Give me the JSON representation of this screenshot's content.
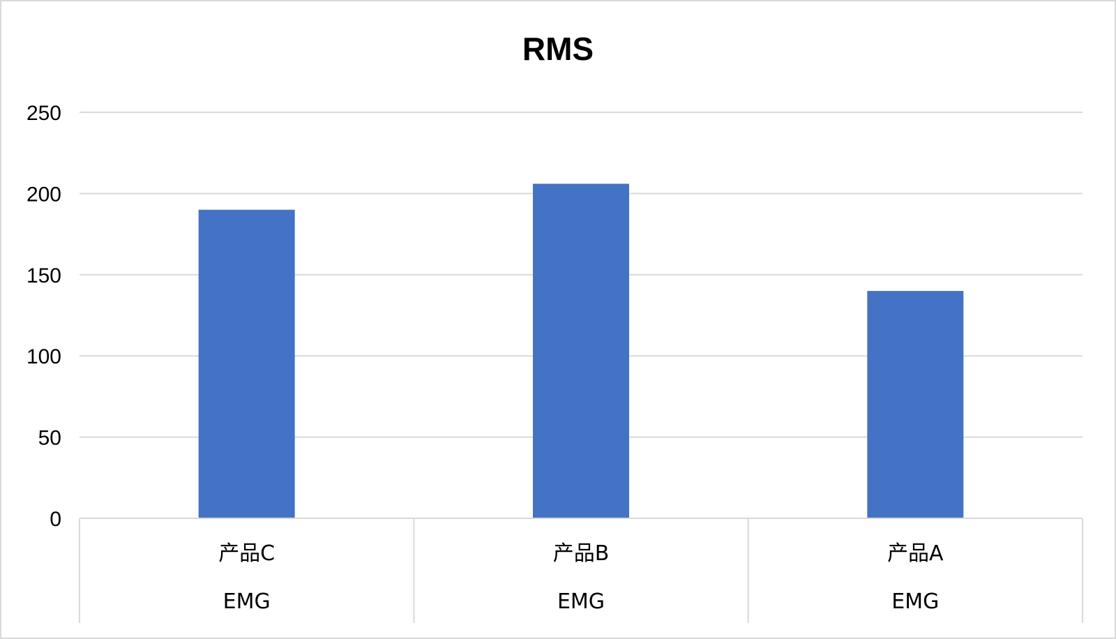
{
  "chart_data": {
    "type": "bar",
    "title": "RMS",
    "categories": [
      "产品C",
      "产品B",
      "产品A"
    ],
    "group_labels": [
      "EMG",
      "EMG",
      "EMG"
    ],
    "values": [
      190,
      206,
      140
    ],
    "ylim": [
      0,
      250
    ],
    "yticks": [
      "0",
      "50",
      "100",
      "150",
      "200",
      "250"
    ],
    "grid": true,
    "legend": "none",
    "bar_color": "#4472C4",
    "grid_color": "#d9d9d9"
  }
}
